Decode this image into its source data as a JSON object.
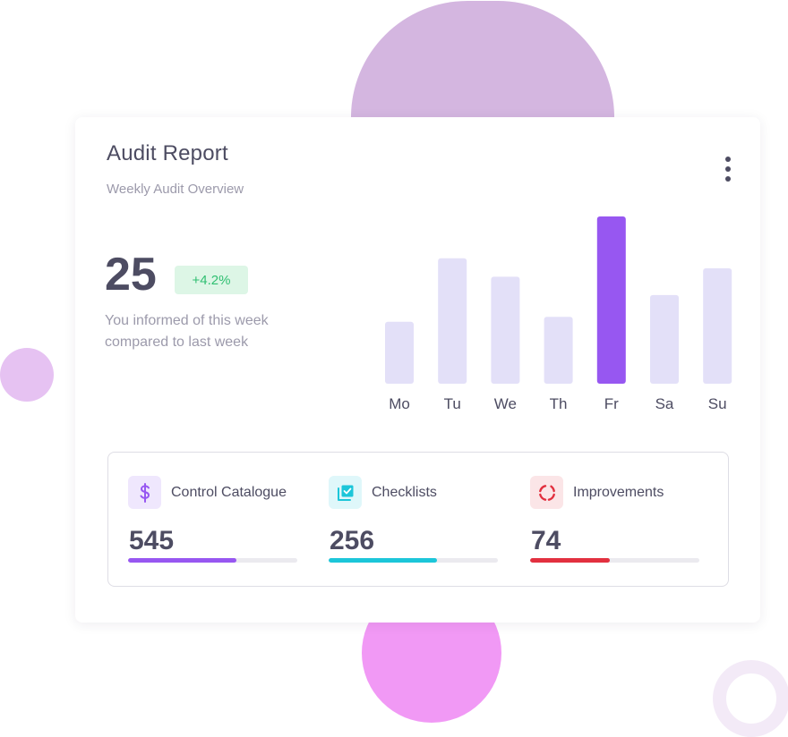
{
  "card": {
    "title": "Audit Report",
    "subtitle": "Weekly Audit Overview",
    "menu_icon": "more-vertical-icon"
  },
  "summary": {
    "value": "25",
    "change": "+4.2%",
    "description": "You informed of this week compared to last week"
  },
  "chart_data": {
    "type": "bar",
    "categories": [
      "Mo",
      "Tu",
      "We",
      "Th",
      "Fr",
      "Sa",
      "Su"
    ],
    "values": [
      37,
      75,
      64,
      40,
      100,
      53,
      69
    ],
    "highlight_index": 4,
    "ylim": [
      0,
      100
    ],
    "grid": false,
    "colors": {
      "bar": "#e3e0f8",
      "highlight": "#9757f1",
      "label": "#4d4c62"
    }
  },
  "stats": [
    {
      "label": "Control Catalogue",
      "value": "545",
      "progress": 0.64,
      "icon": "dollar-icon",
      "color": "#9757f1",
      "icon_bg": "#efe7fd"
    },
    {
      "label": "Checklists",
      "value": "256",
      "progress": 0.64,
      "icon": "checklist-icon",
      "color": "#1cc6d9",
      "icon_bg": "#dff7fa"
    },
    {
      "label": "Improvements",
      "value": "74",
      "progress": 0.47,
      "icon": "refresh-icon",
      "color": "#e2303f",
      "icon_bg": "#fbe5e7"
    }
  ]
}
